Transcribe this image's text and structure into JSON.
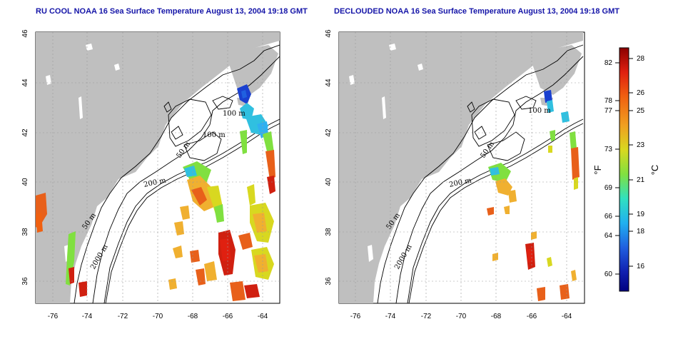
{
  "panels": [
    {
      "id": "ru-cool",
      "title": "RU COOL NOAA 16 Sea Surface Temperature August 13, 2004 19:18 GMT",
      "contour_labels": [
        "100 m",
        "100 m",
        "50 m",
        "200 m",
        "50 m",
        "2000 m"
      ]
    },
    {
      "id": "declouded",
      "title": "DECLOUDED NOAA 16 Sea Surface Temperature August 13, 2004 19:18 GMT",
      "contour_labels": [
        "100 m",
        "50 m",
        "200 m",
        "50 m",
        "2000 m"
      ]
    }
  ],
  "map_axes": {
    "x_ticks": [
      "-76",
      "-74",
      "-72",
      "-70",
      "-68",
      "-66",
      "-64"
    ],
    "y_ticks": [
      "46",
      "44",
      "42",
      "40",
      "38",
      "36"
    ]
  },
  "colorbar": {
    "fahrenheit_ticks": [
      "82",
      "78",
      "77",
      "73",
      "69",
      "66",
      "64",
      "60"
    ],
    "celsius_ticks": [
      "28",
      "26",
      "25",
      "23",
      "21",
      "19",
      "18",
      "16"
    ],
    "fahrenheit_label": "°F",
    "celsius_label": "°C",
    "colors": [
      "#8b0000",
      "#e02010",
      "#f06010",
      "#f0a020",
      "#d8d820",
      "#80e040",
      "#30e0c0",
      "#20b0f0",
      "#2060e0",
      "#1020b0",
      "#000080"
    ]
  },
  "colors": {
    "land": "#bfbfbf",
    "title": "#1515a8",
    "warm": "#e8601a",
    "hot": "#d02010",
    "mild": "#f0b030",
    "cool": "#30c0e0",
    "cold": "#1a40d0"
  }
}
